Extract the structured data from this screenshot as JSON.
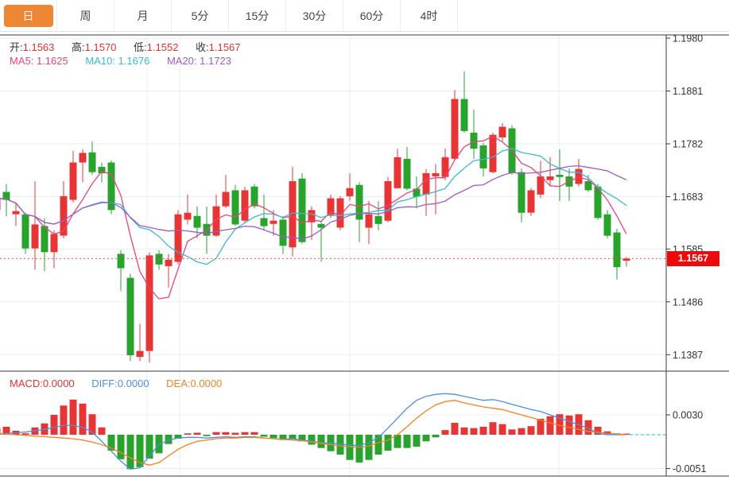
{
  "tabs": {
    "items": [
      {
        "label": "日",
        "active": true
      },
      {
        "label": "周",
        "active": false
      },
      {
        "label": "月",
        "active": false
      },
      {
        "label": "5分",
        "active": false
      },
      {
        "label": "15分",
        "active": false
      },
      {
        "label": "30分",
        "active": false
      },
      {
        "label": "60分",
        "active": false
      },
      {
        "label": "4时",
        "active": false
      }
    ]
  },
  "readout": {
    "open_label": "开:",
    "open_value": "1.1563",
    "high_label": "高:",
    "high_value": "1.1570",
    "low_label": "低:",
    "low_value": "1.1552",
    "close_label": "收:",
    "close_value": "1.1567"
  },
  "ma_readout": {
    "ma5_label": "MA5:",
    "ma5_value": "1.1625",
    "ma10_label": "MA10:",
    "ma10_value": "1.1676",
    "ma20_label": "MA20:",
    "ma20_value": "1.1723"
  },
  "macd_readout": {
    "macd_label": "MACD:",
    "macd_value": "0.0000",
    "diff_label": "DIFF:",
    "diff_value": "0.0000",
    "dea_label": "DEA:",
    "dea_value": "0.0000"
  },
  "price_axis": {
    "last_price_label": "1.1567"
  },
  "colors": {
    "up": "#e73434",
    "down": "#28a32c",
    "accent_tab": "#ed8733",
    "badge": "#ee0a0a",
    "last_price_line": "#f5504a",
    "grid": "#e9edf3",
    "frame": "#3a3a3a",
    "tick_text": "#333333",
    "ma5": "#e7457a",
    "ma10": "#35bccf",
    "ma20": "#a05ac4",
    "diff_line": "#4a90e2",
    "dea_line": "#f5821f",
    "zero_dash": "#3ecfdd"
  },
  "chart_data": [
    {
      "type": "candlestick",
      "title": "",
      "xlabel": "",
      "ylabel": "price",
      "y_ticks": [
        1.198,
        1.1881,
        1.1782,
        1.1683,
        1.1585,
        1.1486,
        1.1387
      ],
      "ylim": [
        1.135,
        1.199
      ],
      "grid": true,
      "x_gridlines": [
        185,
        226,
        440,
        703
      ],
      "last_price": 1.1567,
      "ma_periods": [
        5,
        10,
        20
      ],
      "ma_last_values": [
        1.1625,
        1.1676,
        1.1723
      ],
      "ohlc_format": [
        "open",
        "high",
        "low",
        "close"
      ],
      "ohlc": [
        [
          1.1658,
          1.1699,
          1.1646,
          1.168
        ],
        [
          1.1692,
          1.1707,
          1.1646,
          1.1677
        ],
        [
          1.165,
          1.1672,
          1.1628,
          1.1656
        ],
        [
          1.165,
          1.1653,
          1.1576,
          1.1586
        ],
        [
          1.1586,
          1.1712,
          1.1546,
          1.1631
        ],
        [
          1.1628,
          1.1643,
          1.1543,
          1.1579
        ],
        [
          1.1579,
          1.162,
          1.1549,
          1.1613
        ],
        [
          1.161,
          1.1712,
          1.1605,
          1.1684
        ],
        [
          1.1677,
          1.1769,
          1.1672,
          1.1747
        ],
        [
          1.1747,
          1.1772,
          1.171,
          1.1765
        ],
        [
          1.1766,
          1.1787,
          1.1724,
          1.1729
        ],
        [
          1.1739,
          1.1747,
          1.171,
          1.1727
        ],
        [
          1.1747,
          1.1751,
          1.165,
          1.1658
        ],
        [
          1.1576,
          1.1583,
          1.1506,
          1.1549
        ],
        [
          1.1531,
          1.1539,
          1.1375,
          1.1386
        ],
        [
          1.1383,
          1.1445,
          1.1375,
          1.1394
        ],
        [
          1.1394,
          1.1579,
          1.1372,
          1.1573
        ],
        [
          1.1576,
          1.1583,
          1.1546,
          1.1556
        ],
        [
          1.1553,
          1.1576,
          1.1513,
          1.1565
        ],
        [
          1.1561,
          1.1658,
          1.1556,
          1.165
        ],
        [
          1.164,
          1.1687,
          1.1631,
          1.1653
        ],
        [
          1.1647,
          1.1665,
          1.1605,
          1.1625
        ],
        [
          1.1632,
          1.1665,
          1.1576,
          1.161
        ],
        [
          1.161,
          1.1687,
          1.1608,
          1.1665
        ],
        [
          1.1665,
          1.1724,
          1.1662,
          1.1692
        ],
        [
          1.1695,
          1.1705,
          1.1628,
          1.1631
        ],
        [
          1.1638,
          1.1702,
          1.1635,
          1.1695
        ],
        [
          1.1702,
          1.1707,
          1.1661,
          1.1665
        ],
        [
          1.1643,
          1.1687,
          1.162,
          1.1628
        ],
        [
          1.1632,
          1.1658,
          1.161,
          1.1638
        ],
        [
          1.164,
          1.1647,
          1.1576,
          1.1591
        ],
        [
          1.1588,
          1.1739,
          1.1571,
          1.1712
        ],
        [
          1.1717,
          1.1727,
          1.1595,
          1.1598
        ],
        [
          1.1635,
          1.1665,
          1.1602,
          1.1658
        ],
        [
          1.1632,
          1.1638,
          1.1561,
          1.1625
        ],
        [
          1.1647,
          1.1687,
          1.1643,
          1.168
        ],
        [
          1.1625,
          1.1684,
          1.162,
          1.168
        ],
        [
          1.1684,
          1.1727,
          1.1675,
          1.1699
        ],
        [
          1.1705,
          1.171,
          1.1598,
          1.164
        ],
        [
          1.1625,
          1.1675,
          1.1594,
          1.165
        ],
        [
          1.1647,
          1.1675,
          1.162,
          1.1632
        ],
        [
          1.1638,
          1.172,
          1.1635,
          1.1712
        ],
        [
          1.1699,
          1.1773,
          1.1698,
          1.1757
        ],
        [
          1.1754,
          1.1776,
          1.1695,
          1.1698
        ],
        [
          1.1698,
          1.1721,
          1.1661,
          1.1683
        ],
        [
          1.1687,
          1.1735,
          1.1647,
          1.1727
        ],
        [
          1.1721,
          1.1744,
          1.165,
          1.1727
        ],
        [
          1.172,
          1.1773,
          1.1714,
          1.1757
        ],
        [
          1.1754,
          1.1883,
          1.1751,
          1.1866
        ],
        [
          1.1866,
          1.1918,
          1.1803,
          1.1806
        ],
        [
          1.1803,
          1.1846,
          1.1754,
          1.1773
        ],
        [
          1.1779,
          1.1784,
          1.1721,
          1.1736
        ],
        [
          1.1729,
          1.1803,
          1.1727,
          1.1799
        ],
        [
          1.1794,
          1.1821,
          1.1787,
          1.1814
        ],
        [
          1.1811,
          1.1817,
          1.1724,
          1.1727
        ],
        [
          1.1729,
          1.1736,
          1.1635,
          1.1653
        ],
        [
          1.1653,
          1.1699,
          1.1647,
          1.1695
        ],
        [
          1.1687,
          1.175,
          1.168,
          1.1721
        ],
        [
          1.1714,
          1.1757,
          1.1702,
          1.1721
        ],
        [
          1.1724,
          1.1772,
          1.1675,
          1.172
        ],
        [
          1.1721,
          1.1736,
          1.1675,
          1.1702
        ],
        [
          1.1707,
          1.1754,
          1.1702,
          1.1735
        ],
        [
          1.1712,
          1.1724,
          1.1692,
          1.1695
        ],
        [
          1.1702,
          1.1707,
          1.164,
          1.1643
        ],
        [
          1.165,
          1.1658,
          1.1605,
          1.161
        ],
        [
          1.1616,
          1.1623,
          1.1528,
          1.1551
        ],
        [
          1.1563,
          1.157,
          1.1552,
          1.1567
        ]
      ]
    },
    {
      "type": "macd",
      "title": "MACD(12,26,9)",
      "y_ticks": [
        0.003,
        -0.0051
      ],
      "grid": true,
      "histogram": [
        0.001,
        0.0012,
        0.0006,
        0.0002,
        0.0011,
        0.0017,
        0.003,
        0.0044,
        0.0053,
        0.0047,
        0.0031,
        0.0011,
        -0.0024,
        -0.0037,
        -0.0052,
        -0.0049,
        -0.0036,
        -0.0028,
        -0.0014,
        -0.0006,
        0.0002,
        0.0003,
        -0.0002,
        0.0004,
        0.0004,
        0.0003,
        0.0004,
        0.0004,
        -0.0003,
        -0.0005,
        -0.0008,
        -0.0006,
        -0.001,
        -0.0015,
        -0.002,
        -0.0025,
        -0.003,
        -0.0038,
        -0.0042,
        -0.0038,
        -0.003,
        -0.0024,
        -0.002,
        -0.002,
        -0.0018,
        -0.001,
        -0.0004,
        0.0007,
        0.0018,
        0.0011,
        0.001,
        0.0012,
        0.0019,
        0.0016,
        0.0008,
        0.001,
        0.0013,
        0.0024,
        0.0028,
        0.0031,
        0.0029,
        0.0031,
        0.0022,
        0.0012,
        0.0005,
        0.0002,
        0.0
      ],
      "diff": [
        0.0,
        0.0002,
        0.0003,
        0.0004,
        0.0006,
        0.0008,
        0.0011,
        0.0014,
        0.0014,
        0.0011,
        0.0004,
        -0.001,
        -0.0025,
        -0.004,
        -0.0052,
        -0.005,
        -0.0032,
        -0.0015,
        -0.0008,
        -0.0005,
        -0.0004,
        -0.0004,
        -0.0005,
        -0.0004,
        -0.0003,
        -0.0004,
        -0.0003,
        -0.0003,
        -0.0005,
        -0.0006,
        -0.0007,
        -0.0006,
        -0.0008,
        -0.001,
        -0.0012,
        -0.0013,
        -0.0014,
        -0.0016,
        -0.0016,
        -0.0012,
        -0.0004,
        0.001,
        0.0025,
        0.004,
        0.0052,
        0.0058,
        0.0061,
        0.0062,
        0.0061,
        0.0058,
        0.0055,
        0.0052,
        0.0053,
        0.005,
        0.0046,
        0.0042,
        0.0038,
        0.0035,
        0.003,
        0.0025,
        0.002,
        0.0015,
        0.001,
        0.0002,
        0.0,
        0.0,
        0.0
      ],
      "dea": [
        0.0002,
        0.0001,
        0.0,
        -0.0001,
        -0.0002,
        -0.0003,
        -0.0004,
        -0.0005,
        -0.0006,
        -0.0008,
        -0.0011,
        -0.0015,
        -0.002,
        -0.0027,
        -0.0035,
        -0.0042,
        -0.0046,
        -0.0042,
        -0.0032,
        -0.0022,
        -0.0015,
        -0.001,
        -0.0008,
        -0.0006,
        -0.0005,
        -0.0005,
        -0.0004,
        -0.0004,
        -0.0005,
        -0.0006,
        -0.0007,
        -0.0008,
        -0.0009,
        -0.0011,
        -0.0013,
        -0.0015,
        -0.0017,
        -0.0018,
        -0.0019,
        -0.0017,
        -0.0012,
        -0.0008,
        0.0,
        0.0012,
        0.0025,
        0.0036,
        0.0045,
        0.005,
        0.0052,
        0.0048,
        0.0045,
        0.0042,
        0.004,
        0.0038,
        0.0034,
        0.003,
        0.0026,
        0.0022,
        0.0018,
        0.0014,
        0.0011,
        0.0008,
        0.0005,
        0.0004,
        0.0002,
        0.0001,
        0.0
      ]
    }
  ]
}
